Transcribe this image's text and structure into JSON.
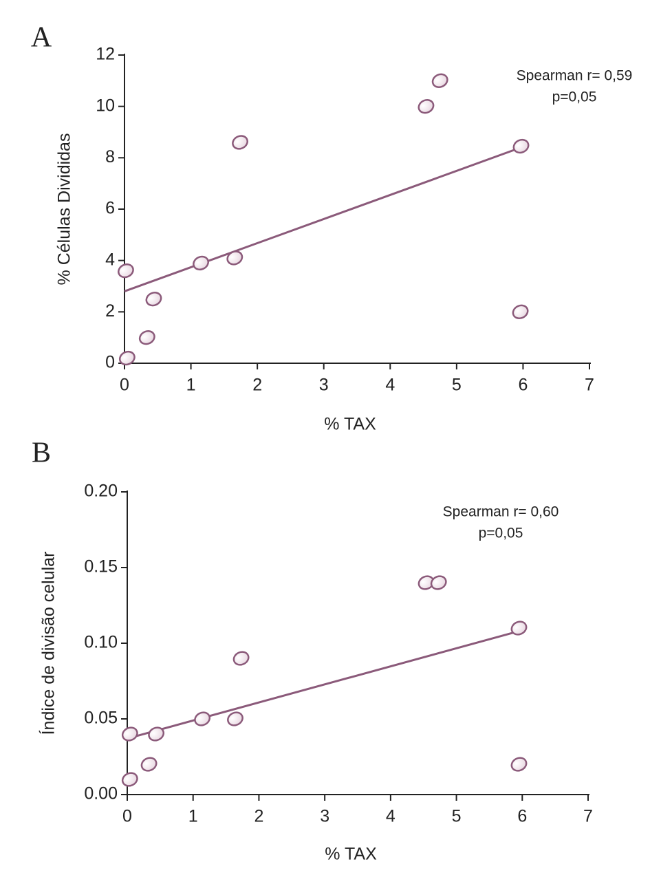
{
  "chart_data": [
    {
      "type": "scatter",
      "panel": "A",
      "xlabel": "% TAX",
      "ylabel": "% Células Divididas",
      "annotations": [
        "Spearman r= 0,59",
        "p=0,05"
      ],
      "x": [
        0.02,
        0.04,
        0.34,
        0.44,
        1.15,
        1.66,
        1.74,
        4.54,
        4.75,
        5.97,
        5.96
      ],
      "y": [
        3.6,
        0.2,
        1.0,
        2.5,
        3.9,
        4.1,
        8.6,
        10.0,
        11.0,
        8.45,
        2.0
      ],
      "trendline": {
        "x": [
          0,
          5.97
        ],
        "y": [
          2.8,
          8.4
        ]
      },
      "color": "#8b5a7a",
      "xlim": [
        0,
        7
      ],
      "xticks": [
        0,
        1,
        2,
        3,
        4,
        5,
        6,
        7
      ],
      "ylim": [
        0,
        12
      ],
      "yticks": [
        0,
        2,
        4,
        6,
        8,
        10,
        12
      ]
    },
    {
      "type": "scatter",
      "panel": "B",
      "xlabel": "% TAX",
      "ylabel": "Índice de divisão celular",
      "annotations": [
        "Spearman r= 0,60",
        "p=0,05"
      ],
      "x": [
        0.04,
        0.04,
        0.33,
        0.44,
        1.14,
        1.64,
        1.73,
        4.54,
        4.73,
        5.95,
        5.95
      ],
      "y": [
        0.04,
        0.01,
        0.02,
        0.04,
        0.05,
        0.05,
        0.09,
        0.14,
        0.14,
        0.11,
        0.02
      ],
      "trendline": {
        "x": [
          0,
          5.95
        ],
        "y": [
          0.037,
          0.108
        ]
      },
      "color": "#8b5a7a",
      "xlim": [
        0,
        7
      ],
      "xticks": [
        0,
        1,
        2,
        3,
        4,
        5,
        6,
        7
      ],
      "ylim": [
        0,
        0.2
      ],
      "yticks": [
        {
          "value": 0,
          "label": "0.00"
        },
        0.05,
        {
          "value": 0.1,
          "label": "0.10"
        },
        0.15,
        {
          "value": 0.2,
          "label": "0.20"
        }
      ]
    }
  ]
}
